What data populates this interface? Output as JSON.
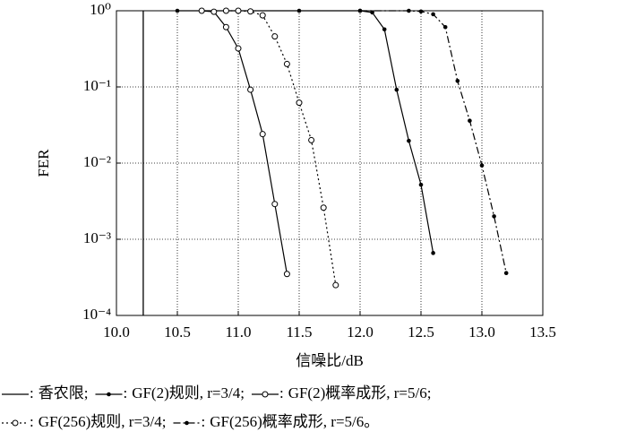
{
  "chart_data": {
    "type": "line",
    "xlabel": "信噪比/dB",
    "ylabel": "FER",
    "xlim": [
      10.0,
      13.5
    ],
    "xticks": [
      {
        "value": 10.0,
        "label": "10.0"
      },
      10.5,
      {
        "value": 11.0,
        "label": "11.0"
      },
      11.5,
      {
        "value": 12.0,
        "label": "12.0"
      },
      12.5,
      {
        "value": 13.0,
        "label": "13.0"
      },
      13.5
    ],
    "ylim": [
      0.0001,
      1
    ],
    "log_y": true,
    "yticks": [
      {
        "value": 1,
        "label": "10⁰"
      },
      {
        "value": 0.1,
        "label": "10⁻¹"
      },
      {
        "value": 0.01,
        "label": "10⁻²"
      },
      {
        "value": 0.001,
        "label": "10⁻³"
      },
      {
        "value": 0.0001,
        "label": "10⁻⁴"
      }
    ],
    "grid": true,
    "shannon_limit": {
      "name": "香农限",
      "x": 10.22,
      "color": "#000000"
    },
    "series": [
      {
        "name": "GF(2)规则, r=3/4",
        "color": "#000000",
        "dash": "solid",
        "marker": "dot",
        "x": [
          10.5,
          11.0,
          11.5,
          12.0,
          12.1,
          12.2,
          12.3,
          12.4,
          12.5,
          12.6
        ],
        "values": [
          1,
          1,
          1,
          1,
          0.95,
          0.57,
          0.092,
          0.0196,
          0.0052,
          0.00066
        ]
      },
      {
        "name": "GF(2)概率成形, r=5/6",
        "color": "#000000",
        "dash": "solid",
        "marker": "circle",
        "x": [
          10.7,
          10.8,
          10.9,
          11.0,
          11.1,
          11.2,
          11.3,
          11.4
        ],
        "values": [
          1,
          0.97,
          0.61,
          0.32,
          0.092,
          0.024,
          0.0029,
          0.00035
        ]
      },
      {
        "name": "GF(256)规则, r=3/4",
        "color": "#000000",
        "dash": "dotted",
        "marker": "circle",
        "x": [
          10.9,
          11.0,
          11.1,
          11.2,
          11.3,
          11.4,
          11.5,
          11.6,
          11.7,
          11.8
        ],
        "values": [
          1,
          1,
          0.98,
          0.87,
          0.46,
          0.2,
          0.062,
          0.02,
          0.0026,
          0.00025
        ]
      },
      {
        "name": "GF(256)概率成形, r=5/6",
        "color": "#000000",
        "dash": "dashdot",
        "marker": "dot",
        "x": [
          12.0,
          12.4,
          12.5,
          12.6,
          12.7,
          12.8,
          12.9,
          13.0,
          13.1,
          13.2
        ],
        "values": [
          1,
          1,
          0.98,
          0.9,
          0.61,
          0.12,
          0.036,
          0.0093,
          0.002,
          0.00036
        ]
      }
    ],
    "legend_punctuation": {
      "colon": ":",
      "separator": ";",
      "end": "。"
    }
  }
}
